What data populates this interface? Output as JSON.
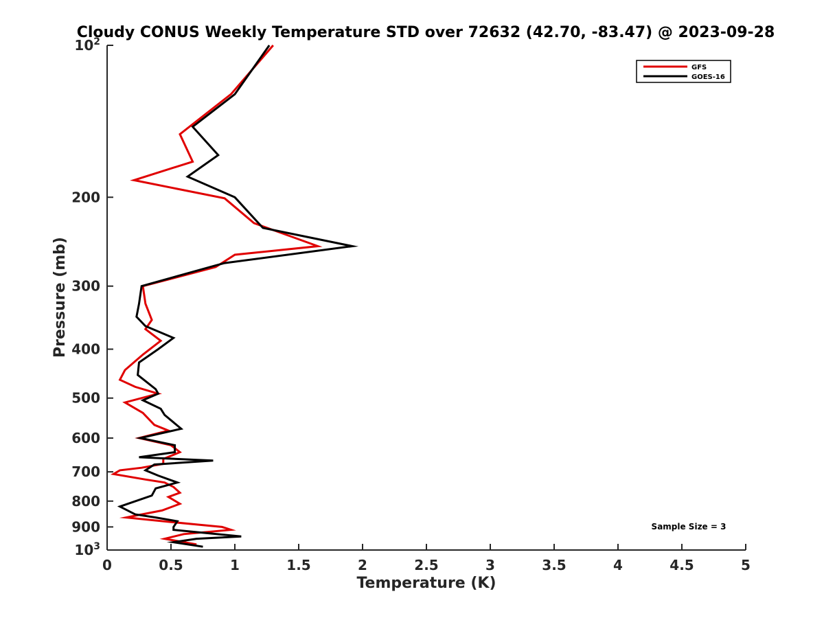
{
  "chart_data": {
    "type": "line",
    "title": "Cloudy CONUS Weekly Temperature STD over 72632 (42.70, -83.47) @ 2023-09-28",
    "xlabel": "Temperature (K)",
    "ylabel": "Pressure (mb)",
    "xlim": [
      0,
      5
    ],
    "ylim": [
      1000,
      100
    ],
    "yscale": "log",
    "y_reversed": true,
    "grid": false,
    "legend_position": "top-right",
    "x_ticks": [
      "0",
      "0.5",
      "1",
      "1.5",
      "2",
      "2.5",
      "3",
      "3.5",
      "4",
      "4.5",
      "5"
    ],
    "y_ticks": [
      {
        "value": 100,
        "base": "10",
        "exp": "2"
      },
      {
        "value": 200,
        "label": "200"
      },
      {
        "value": 300,
        "label": "300"
      },
      {
        "value": 400,
        "label": "400"
      },
      {
        "value": 500,
        "label": "500"
      },
      {
        "value": 600,
        "label": "600"
      },
      {
        "value": 700,
        "label": "700"
      },
      {
        "value": 800,
        "label": "800"
      },
      {
        "value": 900,
        "label": "900"
      },
      {
        "value": 1000,
        "base": "10",
        "exp": "3"
      }
    ],
    "annotation": "Sample Size = 3",
    "series": [
      {
        "name": "GFS",
        "color": "#e00000",
        "points": [
          [
            1.3,
            100
          ],
          [
            0.97,
            125
          ],
          [
            0.57,
            150
          ],
          [
            0.67,
            170
          ],
          [
            0.21,
            185
          ],
          [
            0.92,
            201
          ],
          [
            1.15,
            225
          ],
          [
            1.65,
            250
          ],
          [
            1.0,
            260
          ],
          [
            0.85,
            275
          ],
          [
            0.28,
            300
          ],
          [
            0.3,
            325
          ],
          [
            0.35,
            350
          ],
          [
            0.3,
            365
          ],
          [
            0.42,
            385
          ],
          [
            0.28,
            410
          ],
          [
            0.14,
            440
          ],
          [
            0.1,
            460
          ],
          [
            0.22,
            475
          ],
          [
            0.4,
            490
          ],
          [
            0.14,
            510
          ],
          [
            0.28,
            535
          ],
          [
            0.37,
            565
          ],
          [
            0.48,
            580
          ],
          [
            0.25,
            600
          ],
          [
            0.5,
            620
          ],
          [
            0.57,
            640
          ],
          [
            0.44,
            660
          ],
          [
            0.44,
            675
          ],
          [
            0.27,
            687
          ],
          [
            0.1,
            695
          ],
          [
            0.05,
            707
          ],
          [
            0.3,
            725
          ],
          [
            0.45,
            735
          ],
          [
            0.52,
            750
          ],
          [
            0.57,
            770
          ],
          [
            0.48,
            785
          ],
          [
            0.57,
            810
          ],
          [
            0.43,
            835
          ],
          [
            0.25,
            852
          ],
          [
            0.15,
            862
          ],
          [
            0.5,
            880
          ],
          [
            0.9,
            900
          ],
          [
            0.97,
            912
          ],
          [
            0.6,
            930
          ],
          [
            0.45,
            950
          ],
          [
            0.7,
            975
          ]
        ]
      },
      {
        "name": "GOES-16",
        "color": "#000000",
        "points": [
          [
            1.27,
            100
          ],
          [
            1.0,
            125
          ],
          [
            0.67,
            145
          ],
          [
            0.87,
            165
          ],
          [
            0.63,
            182
          ],
          [
            1.0,
            200
          ],
          [
            1.22,
            230
          ],
          [
            1.92,
            250
          ],
          [
            0.92,
            270
          ],
          [
            0.85,
            273
          ],
          [
            0.27,
            300
          ],
          [
            0.25,
            325
          ],
          [
            0.23,
            345
          ],
          [
            0.3,
            360
          ],
          [
            0.52,
            380
          ],
          [
            0.4,
            400
          ],
          [
            0.25,
            425
          ],
          [
            0.24,
            450
          ],
          [
            0.38,
            480
          ],
          [
            0.4,
            490
          ],
          [
            0.28,
            505
          ],
          [
            0.42,
            525
          ],
          [
            0.45,
            540
          ],
          [
            0.58,
            575
          ],
          [
            0.26,
            600
          ],
          [
            0.53,
            620
          ],
          [
            0.53,
            640
          ],
          [
            0.25,
            655
          ],
          [
            0.83,
            665
          ],
          [
            0.37,
            677
          ],
          [
            0.3,
            695
          ],
          [
            0.4,
            712
          ],
          [
            0.55,
            735
          ],
          [
            0.38,
            755
          ],
          [
            0.35,
            780
          ],
          [
            0.1,
            820
          ],
          [
            0.22,
            850
          ],
          [
            0.38,
            862
          ],
          [
            0.55,
            877
          ],
          [
            0.52,
            900
          ],
          [
            0.52,
            912
          ],
          [
            1.05,
            940
          ],
          [
            0.7,
            950
          ],
          [
            0.52,
            965
          ],
          [
            0.75,
            985
          ]
        ]
      }
    ]
  }
}
